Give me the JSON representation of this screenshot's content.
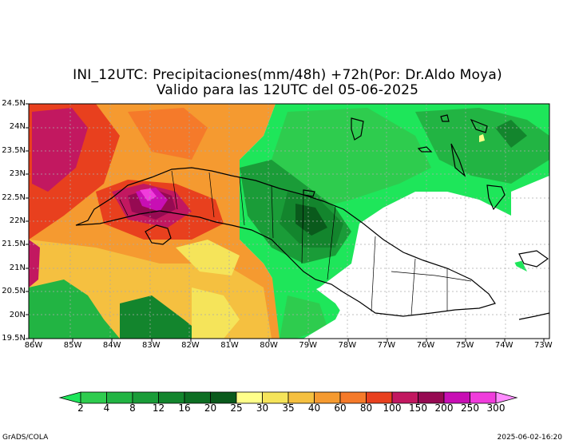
{
  "title_line1": "INI_12UTC: Precipitaciones(mm/48h) +72h(Por: Dr.Aldo Moya)",
  "title_line2": "Valido para las 12UTC del 05-06-2025",
  "lat_labels": [
    "24.5N",
    "24N",
    "23.5N",
    "23N",
    "22.5N",
    "22N",
    "21.5N",
    "21N",
    "20.5N",
    "20N",
    "19.5N"
  ],
  "lon_labels": [
    "86W",
    "85W",
    "84W",
    "83W",
    "82W",
    "81W",
    "80W",
    "79W",
    "78W",
    "77W",
    "76W",
    "75W",
    "74W",
    "73W"
  ],
  "legend": {
    "breaks": [
      "2",
      "4",
      "8",
      "12",
      "16",
      "20",
      "25",
      "30",
      "35",
      "40",
      "60",
      "80",
      "100",
      "150",
      "200",
      "250",
      "300"
    ],
    "colors": [
      "#1ee65a",
      "#2ecc4e",
      "#22b443",
      "#1a9c38",
      "#13852d",
      "#0d6e23",
      "#0a5a1c",
      "#ffff8a",
      "#f5e45a",
      "#f5c040",
      "#f59a30",
      "#f57a2a",
      "#e8401e",
      "#c21860",
      "#960a52",
      "#c80fb4",
      "#f03cdc",
      "#ff8cff"
    ]
  },
  "footer_left": "GrADS/COLA",
  "footer_right": "2025-06-02-16:20"
}
